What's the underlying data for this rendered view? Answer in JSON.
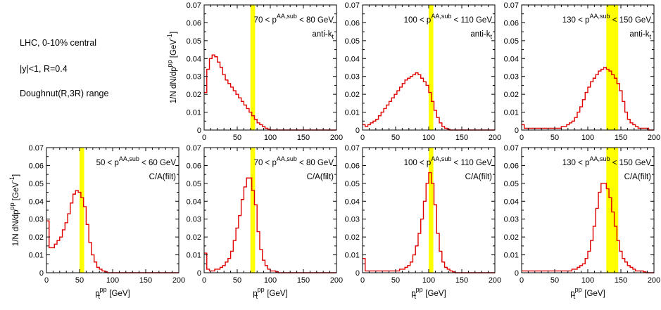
{
  "info": {
    "line1": "LHC, 0-10% central",
    "line2": "|y|<1, R=0.4",
    "line3": "Doughnut(R,3R) range"
  },
  "axis_text": {
    "ylabel_prefix": "1/N dN/dp",
    "ylabel_sup": "pp",
    "ylabel_unit_open": " [GeV",
    "ylabel_unit_sup": "-1",
    "ylabel_unit_close": "]",
    "xlabel_main": "p",
    "xlabel_sup": "pp",
    "xlabel_unit": " [GeV]"
  },
  "colors": {
    "histogram": "#e00000",
    "band": "#ffff00"
  },
  "chart_data": [
    {
      "type": "line",
      "row": 0,
      "col": 1,
      "label": {
        "pre": "70 < p",
        "sup": "AA,sub",
        "post": " < 80 GeV"
      },
      "algo": "anti-k",
      "algo_sub": "t",
      "band": [
        70,
        77
      ],
      "xlim": [
        0,
        200
      ],
      "ylim": [
        0,
        0.07
      ],
      "xticks": [
        0,
        50,
        100,
        150,
        200
      ],
      "yticks": [
        0,
        0.01,
        0.02,
        0.03,
        0.04,
        0.05,
        0.06,
        0.07
      ],
      "bin_width": 4,
      "values": [
        0.021,
        0.034,
        0.04,
        0.042,
        0.041,
        0.038,
        0.035,
        0.031,
        0.028,
        0.026,
        0.024,
        0.022,
        0.02,
        0.018,
        0.016,
        0.014,
        0.012,
        0.01,
        0.008,
        0.006,
        0.004,
        0.003,
        0.002,
        0.001,
        0.0005,
        0,
        0,
        0,
        0,
        0,
        0,
        0,
        0,
        0,
        0,
        0,
        0,
        0,
        0,
        0,
        0,
        0,
        0,
        0,
        0,
        0,
        0,
        0,
        0,
        0
      ]
    },
    {
      "type": "line",
      "row": 0,
      "col": 2,
      "label": {
        "pre": "100 < p",
        "sup": "AA,sub",
        "post": " < 110 GeV"
      },
      "algo": "anti-k",
      "algo_sub": "t",
      "band": [
        100,
        107
      ],
      "xlim": [
        0,
        200
      ],
      "ylim": [
        0,
        0.07
      ],
      "xticks": [
        0,
        50,
        100,
        150,
        200
      ],
      "yticks": [
        0,
        0.01,
        0.02,
        0.03,
        0.04,
        0.05,
        0.06,
        0.07
      ],
      "bin_width": 4,
      "values": [
        0.003,
        0.002,
        0.003,
        0.004,
        0.005,
        0.006,
        0.008,
        0.01,
        0.012,
        0.014,
        0.016,
        0.018,
        0.02,
        0.022,
        0.024,
        0.026,
        0.028,
        0.029,
        0.03,
        0.031,
        0.032,
        0.031,
        0.029,
        0.027,
        0.025,
        0.021,
        0.016,
        0.011,
        0.007,
        0.004,
        0.002,
        0.001,
        0.0005,
        0,
        0,
        0,
        0,
        0,
        0,
        0,
        0,
        0,
        0,
        0,
        0,
        0,
        0,
        0,
        0,
        0
      ]
    },
    {
      "type": "line",
      "row": 0,
      "col": 3,
      "label": {
        "pre": "130 < p",
        "sup": "AA,sub",
        "post": " < 150 GeV"
      },
      "algo": "anti-k",
      "algo_sub": "t",
      "band": [
        128,
        146
      ],
      "xlim": [
        0,
        200
      ],
      "ylim": [
        0,
        0.07
      ],
      "xticks": [
        0,
        50,
        100,
        150,
        200
      ],
      "yticks": [
        0,
        0.01,
        0.02,
        0.03,
        0.04,
        0.05,
        0.06,
        0.07
      ],
      "bin_width": 4,
      "values": [
        0.003,
        0.001,
        0.001,
        0.001,
        0.001,
        0.001,
        0.001,
        0.001,
        0.001,
        0.001,
        0.001,
        0.001,
        0.001,
        0.001,
        0.001,
        0.002,
        0.002,
        0.003,
        0.004,
        0.005,
        0.007,
        0.01,
        0.013,
        0.017,
        0.021,
        0.024,
        0.027,
        0.029,
        0.031,
        0.033,
        0.034,
        0.035,
        0.034,
        0.033,
        0.031,
        0.029,
        0.026,
        0.022,
        0.016,
        0.01,
        0.006,
        0.004,
        0.003,
        0.002,
        0.001,
        0.001,
        0.001,
        0.001,
        0,
        0
      ]
    },
    {
      "type": "line",
      "row": 1,
      "col": 0,
      "label": {
        "pre": "50 < p",
        "sup": "AA,sub",
        "post": " < 60 GeV"
      },
      "algo": "C/A(filt)",
      "algo_sub": "",
      "band": [
        50,
        57
      ],
      "xlim": [
        0,
        200
      ],
      "ylim": [
        0,
        0.07
      ],
      "xticks": [
        0,
        50,
        100,
        150,
        200
      ],
      "yticks": [
        0,
        0.01,
        0.02,
        0.03,
        0.04,
        0.05,
        0.06,
        0.07
      ],
      "bin_width": 4,
      "values": [
        0.029,
        0.014,
        0.014,
        0.016,
        0.018,
        0.02,
        0.024,
        0.028,
        0.033,
        0.039,
        0.044,
        0.046,
        0.045,
        0.042,
        0.037,
        0.027,
        0.017,
        0.01,
        0.006,
        0.003,
        0.002,
        0.001,
        0.0005,
        0,
        0,
        0,
        0,
        0,
        0,
        0,
        0,
        0,
        0,
        0,
        0,
        0,
        0,
        0,
        0,
        0,
        0,
        0,
        0,
        0,
        0,
        0,
        0,
        0,
        0,
        0
      ]
    },
    {
      "type": "line",
      "row": 1,
      "col": 1,
      "label": {
        "pre": "70 < p",
        "sup": "AA,sub",
        "post": " < 80 GeV"
      },
      "algo": "C/A(filt)",
      "algo_sub": "",
      "band": [
        70,
        77
      ],
      "xlim": [
        0,
        200
      ],
      "ylim": [
        0,
        0.07
      ],
      "xticks": [
        0,
        50,
        100,
        150,
        200
      ],
      "yticks": [
        0,
        0.01,
        0.02,
        0.03,
        0.04,
        0.05,
        0.06,
        0.07
      ],
      "bin_width": 4,
      "values": [
        0.011,
        0.002,
        0.001,
        0.001,
        0.002,
        0.002,
        0.003,
        0.004,
        0.006,
        0.008,
        0.012,
        0.018,
        0.025,
        0.032,
        0.041,
        0.048,
        0.053,
        0.053,
        0.046,
        0.038,
        0.023,
        0.013,
        0.007,
        0.004,
        0.002,
        0.001,
        0.001,
        0.0005,
        0,
        0,
        0,
        0,
        0,
        0,
        0,
        0,
        0,
        0,
        0,
        0,
        0,
        0,
        0,
        0,
        0,
        0,
        0,
        0,
        0,
        0
      ]
    },
    {
      "type": "line",
      "row": 1,
      "col": 2,
      "label": {
        "pre": "100 < p",
        "sup": "AA,sub",
        "post": " < 110 GeV"
      },
      "algo": "C/A(filt)",
      "algo_sub": "",
      "band": [
        100,
        107
      ],
      "xlim": [
        0,
        200
      ],
      "ylim": [
        0,
        0.07
      ],
      "xticks": [
        0,
        50,
        100,
        150,
        200
      ],
      "yticks": [
        0,
        0.01,
        0.02,
        0.03,
        0.04,
        0.05,
        0.06,
        0.07
      ],
      "bin_width": 4,
      "values": [
        0.008,
        0.001,
        0.001,
        0.001,
        0.001,
        0.001,
        0.001,
        0.001,
        0.001,
        0.001,
        0.001,
        0.001,
        0.001,
        0.001,
        0.002,
        0.002,
        0.003,
        0.004,
        0.006,
        0.01,
        0.015,
        0.022,
        0.03,
        0.04,
        0.05,
        0.056,
        0.05,
        0.038,
        0.022,
        0.012,
        0.006,
        0.003,
        0.002,
        0.001,
        0.0005,
        0,
        0,
        0,
        0,
        0,
        0,
        0,
        0,
        0,
        0,
        0,
        0,
        0,
        0,
        0
      ]
    },
    {
      "type": "line",
      "row": 1,
      "col": 3,
      "label": {
        "pre": "130 < p",
        "sup": "AA,sub",
        "post": " < 150 GeV"
      },
      "algo": "C/A(filt)",
      "algo_sub": "",
      "band": [
        128,
        146
      ],
      "xlim": [
        0,
        200
      ],
      "ylim": [
        0,
        0.07
      ],
      "xticks": [
        0,
        50,
        100,
        150,
        200
      ],
      "yticks": [
        0,
        0.01,
        0.02,
        0.03,
        0.04,
        0.05,
        0.06,
        0.07
      ],
      "bin_width": 4,
      "values": [
        0.001,
        0.001,
        0.001,
        0.001,
        0.001,
        0.001,
        0.001,
        0.001,
        0.001,
        0.001,
        0.001,
        0.001,
        0.001,
        0.001,
        0.001,
        0.001,
        0.001,
        0.001,
        0.001,
        0.002,
        0.002,
        0.003,
        0.004,
        0.005,
        0.008,
        0.012,
        0.018,
        0.026,
        0.036,
        0.045,
        0.05,
        0.05,
        0.047,
        0.042,
        0.034,
        0.026,
        0.018,
        0.012,
        0.008,
        0.006,
        0.004,
        0.003,
        0.002,
        0.001,
        0.001,
        0.001,
        0.0005,
        0,
        0,
        0
      ]
    }
  ]
}
